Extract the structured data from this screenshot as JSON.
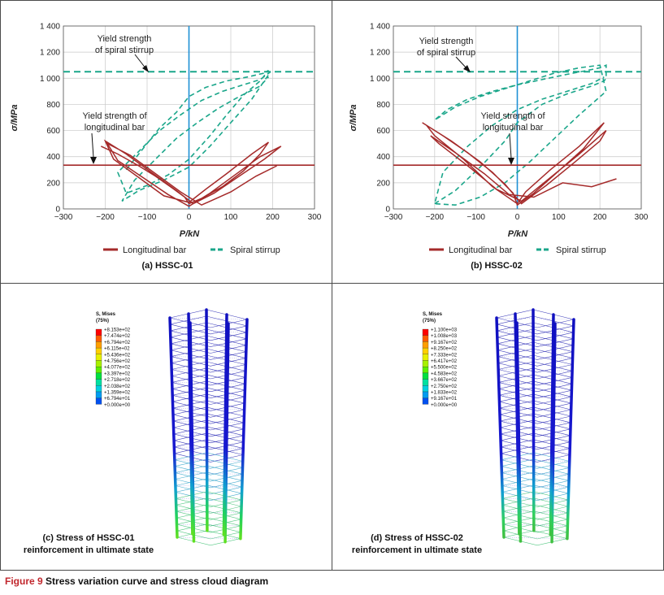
{
  "figure": {
    "number": "Figure 9",
    "title": "Stress variation curve and stress cloud diagram"
  },
  "chart_data": [
    {
      "type": "line",
      "title": "(a) HSSC-01",
      "xlabel": "P/kN",
      "ylabel": "σ/MPa",
      "xlim": [
        -300,
        300
      ],
      "ylim": [
        0,
        1400
      ],
      "x_ticks": [
        "−300",
        "−200",
        "−100",
        "0",
        "100",
        "200",
        "300"
      ],
      "y_ticks": [
        "0",
        "200",
        "400",
        "600",
        "800",
        "1 000",
        "1 200",
        "1 400"
      ],
      "grid": true,
      "legend": [
        "Longitudinal bar",
        "Spiral stirrup"
      ],
      "reference_lines": [
        {
          "name": "Yield strength of spiral stirrup",
          "axis": "y",
          "value": 1050
        },
        {
          "name": "Yield strength of longitudinal bar",
          "axis": "y",
          "value": 335
        }
      ],
      "annotations": [
        {
          "lines": [
            "Yield strength",
            "of spiral stirrup"
          ]
        },
        {
          "lines": [
            "Yield strength of",
            "longitudinal bar"
          ]
        }
      ],
      "series": [
        {
          "name": "Longitudinal bar",
          "x": [
            -210,
            -170,
            -120,
            -80,
            -40,
            -10,
            0,
            30,
            80,
            130,
            170,
            190,
            150,
            90,
            40,
            0,
            -60,
            -120,
            -180,
            -200,
            -150,
            -90,
            -30,
            10,
            60,
            120,
            180,
            220,
            170,
            110,
            50,
            0,
            -50,
            -110,
            -170,
            -195,
            -140,
            -80,
            -20,
            30,
            100,
            160,
            210
          ],
          "y": [
            480,
            420,
            330,
            250,
            160,
            90,
            40,
            80,
            170,
            290,
            420,
            510,
            420,
            270,
            150,
            50,
            100,
            240,
            380,
            520,
            420,
            280,
            140,
            40,
            120,
            250,
            380,
            480,
            400,
            260,
            120,
            20,
            110,
            240,
            370,
            500,
            410,
            270,
            130,
            30,
            130,
            250,
            330
          ]
        },
        {
          "name": "Spiral stirrup",
          "x": [
            -150,
            -110,
            -70,
            -30,
            0,
            40,
            90,
            140,
            180,
            190,
            170,
            130,
            90,
            50,
            0,
            -50,
            -100,
            -150,
            -170,
            -120,
            -70,
            -20,
            30,
            80,
            130,
            170,
            195,
            150,
            100,
            50,
            0,
            -60,
            -120,
            -160,
            -130,
            -80,
            -30,
            20,
            70,
            120,
            170,
            190
          ],
          "y": [
            300,
            460,
            620,
            740,
            860,
            930,
            980,
            1010,
            1040,
            1060,
            980,
            870,
            720,
            560,
            380,
            260,
            180,
            120,
            280,
            440,
            600,
            720,
            830,
            900,
            950,
            990,
            1050,
            840,
            660,
            480,
            320,
            220,
            140,
            60,
            220,
            380,
            540,
            660,
            770,
            860,
            940,
            1010
          ]
        }
      ]
    },
    {
      "type": "line",
      "title": "(b) HSSC-02",
      "xlabel": "P/kN",
      "ylabel": "σ/MPa",
      "xlim": [
        -300,
        300
      ],
      "ylim": [
        0,
        1400
      ],
      "x_ticks": [
        "−300",
        "−200",
        "−100",
        "0",
        "100",
        "200",
        "300"
      ],
      "y_ticks": [
        "0",
        "200",
        "400",
        "600",
        "800",
        "1 000",
        "1 200",
        "1 400"
      ],
      "grid": true,
      "legend": [
        "Longitudinal bar",
        "Spiral stirrup"
      ],
      "reference_lines": [
        {
          "name": "Yield strength of spiral stirrup",
          "axis": "y",
          "value": 1050
        },
        {
          "name": "Yield strength of longitudinal bar",
          "axis": "y",
          "value": 335
        }
      ],
      "annotations": [
        {
          "lines": [
            "Yield strength",
            "of spiral stirrup"
          ]
        },
        {
          "lines": [
            "Yield strength of",
            "longitudinal bar"
          ]
        }
      ],
      "series": [
        {
          "name": "Longitudinal bar",
          "x": [
            -230,
            -180,
            -120,
            -60,
            -10,
            0,
            40,
            100,
            160,
            200,
            210,
            150,
            80,
            20,
            0,
            -60,
            -130,
            -200,
            -220,
            -160,
            -90,
            -30,
            10,
            70,
            140,
            200,
            215,
            150,
            80,
            10,
            -50,
            -120,
            -190,
            -210,
            -150,
            -80,
            -20,
            40,
            110,
            180,
            240
          ],
          "y": [
            660,
            560,
            430,
            280,
            120,
            30,
            120,
            290,
            460,
            620,
            660,
            480,
            300,
            130,
            40,
            170,
            380,
            560,
            640,
            520,
            360,
            190,
            40,
            180,
            360,
            520,
            600,
            420,
            240,
            60,
            150,
            330,
            500,
            560,
            430,
            270,
            110,
            90,
            200,
            170,
            230
          ]
        },
        {
          "name": "Spiral stirrup",
          "x": [
            -200,
            -150,
            -90,
            -30,
            0,
            60,
            120,
            180,
            210,
            215,
            215,
            200,
            170,
            120,
            60,
            0,
            -60,
            -120,
            -170,
            -200,
            -150,
            -90,
            -30,
            30,
            90,
            150,
            200,
            215,
            150,
            90,
            30,
            -30,
            -90,
            -150,
            -200,
            -180,
            -120,
            -60,
            0,
            60,
            120,
            180,
            210
          ],
          "y": [
            40,
            140,
            320,
            520,
            660,
            800,
            880,
            940,
            980,
            1000,
            1100,
            1080,
            1060,
            1030,
            990,
            950,
            900,
            840,
            760,
            680,
            780,
            860,
            920,
            980,
            1040,
            1080,
            1100,
            900,
            720,
            540,
            360,
            200,
            90,
            30,
            40,
            280,
            480,
            640,
            760,
            840,
            900,
            960,
            1010
          ]
        }
      ]
    }
  ],
  "panel_a": {
    "axes": {
      "xlabel": "P/kN",
      "ylabel": "σ/MPa",
      "xticks": [
        "−300",
        "−200",
        "−100",
        "0",
        "100",
        "200",
        "300"
      ],
      "yticks": [
        "0",
        "200",
        "400",
        "600",
        "800",
        "1 000",
        "1 200",
        "1 400"
      ]
    },
    "annot_spiral": [
      "Yield strength",
      "of spiral stirrup"
    ],
    "annot_long": [
      "Yield strength of",
      "longitudinal bar"
    ],
    "legend": {
      "long": "Longitudinal bar",
      "spiral": "Spiral stirrup"
    },
    "caption": "(a) HSSC-01"
  },
  "panel_b": {
    "axes": {
      "xlabel": "P/kN",
      "ylabel": "σ/MPa",
      "xticks": [
        "−300",
        "−200",
        "−100",
        "0",
        "100",
        "200",
        "300"
      ],
      "yticks": [
        "0",
        "200",
        "400",
        "600",
        "800",
        "1 000",
        "1 200",
        "1 400"
      ]
    },
    "annot_spiral": [
      "Yield strength",
      "of spiral stirrup"
    ],
    "annot_long": [
      "Yield strength of",
      "longitudinal bar"
    ],
    "legend": {
      "long": "Longitudinal bar",
      "spiral": "Spiral stirrup"
    },
    "caption": "(b) HSSC-02"
  },
  "panel_c": {
    "legend_title": [
      "S, Mises",
      "(75%)"
    ],
    "legend_values": [
      "+8.153e+02",
      "+7.474e+02",
      "+6.794e+02",
      "+6.115e+02",
      "+5.436e+02",
      "+4.756e+02",
      "+4.077e+02",
      "+3.397e+02",
      "+2.718e+02",
      "+2.038e+02",
      "+1.359e+02",
      "+6.794e+01",
      "+0.000e+00"
    ],
    "caption": [
      "(c) Stress of HSSC-01",
      "reinforcement in ultimate state"
    ]
  },
  "panel_d": {
    "legend_title": [
      "S, Mises",
      "(75%)"
    ],
    "legend_values": [
      "+1.100e+03",
      "+1.008e+03",
      "+9.167e+02",
      "+8.250e+02",
      "+7.333e+02",
      "+6.417e+02",
      "+5.500e+02",
      "+4.583e+02",
      "+3.667e+02",
      "+2.750e+02",
      "+1.833e+02",
      "+9.167e+01",
      "+0.000e+00"
    ],
    "caption": [
      "(d) Stress of HSSC-02",
      "reinforcement in ultimate state"
    ]
  },
  "colors": {
    "longitudinal": "#a52a2a",
    "spiral": "#1aa68a",
    "axis_marker": "#1e90d6",
    "caption_red": "#c1272d",
    "contour": [
      "#ff0000",
      "#ff5a00",
      "#ff9e00",
      "#ffd000",
      "#e6f000",
      "#a8f000",
      "#5ef000",
      "#00e040",
      "#00e0a0",
      "#00d0e0",
      "#009cf0",
      "#0050f0",
      "#0000f0"
    ]
  }
}
